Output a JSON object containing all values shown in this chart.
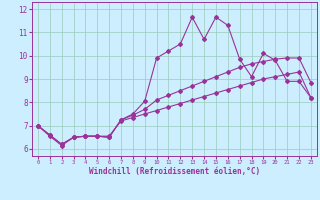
{
  "xlabel": "Windchill (Refroidissement éolien,°C)",
  "bg_color": "#cceeff",
  "line_color": "#993399",
  "grid_color": "#99ccbb",
  "xlim": [
    -0.5,
    23.5
  ],
  "ylim": [
    5.7,
    12.3
  ],
  "xticks": [
    0,
    1,
    2,
    3,
    4,
    5,
    6,
    7,
    8,
    9,
    10,
    11,
    12,
    13,
    14,
    15,
    16,
    17,
    18,
    19,
    20,
    21,
    22,
    23
  ],
  "yticks": [
    6,
    7,
    8,
    9,
    10,
    11,
    12
  ],
  "line1_x": [
    0,
    1,
    2,
    3,
    4,
    5,
    6,
    7,
    8,
    9,
    10,
    11,
    12,
    13,
    14,
    15,
    16,
    17,
    18,
    19,
    20,
    21,
    22,
    23
  ],
  "line1_y": [
    7.0,
    6.6,
    6.2,
    6.5,
    6.55,
    6.55,
    6.55,
    7.2,
    7.35,
    7.5,
    7.65,
    7.8,
    7.95,
    8.1,
    8.25,
    8.4,
    8.55,
    8.7,
    8.85,
    9.0,
    9.1,
    9.2,
    9.3,
    8.2
  ],
  "line2_x": [
    0,
    1,
    2,
    3,
    4,
    5,
    6,
    7,
    8,
    9,
    10,
    11,
    12,
    13,
    14,
    15,
    16,
    17,
    18,
    19,
    20,
    21,
    22,
    23
  ],
  "line2_y": [
    7.0,
    6.55,
    6.15,
    6.5,
    6.55,
    6.55,
    6.5,
    7.25,
    7.45,
    7.7,
    8.1,
    8.3,
    8.5,
    8.7,
    8.9,
    9.1,
    9.3,
    9.5,
    9.65,
    9.75,
    9.85,
    9.9,
    9.9,
    8.85
  ],
  "line3_x": [
    0,
    1,
    2,
    3,
    4,
    5,
    6,
    7,
    8,
    9,
    10,
    11,
    12,
    13,
    14,
    15,
    16,
    17,
    18,
    19,
    20,
    21,
    22,
    23
  ],
  "line3_y": [
    7.0,
    6.6,
    6.2,
    6.5,
    6.55,
    6.55,
    6.5,
    7.25,
    7.5,
    8.05,
    9.9,
    10.2,
    10.5,
    11.65,
    10.7,
    11.65,
    11.3,
    9.85,
    9.1,
    10.1,
    9.8,
    8.9,
    8.9,
    8.2
  ],
  "marker_style": "D",
  "marker_size": 2.0,
  "line_width": 0.8
}
